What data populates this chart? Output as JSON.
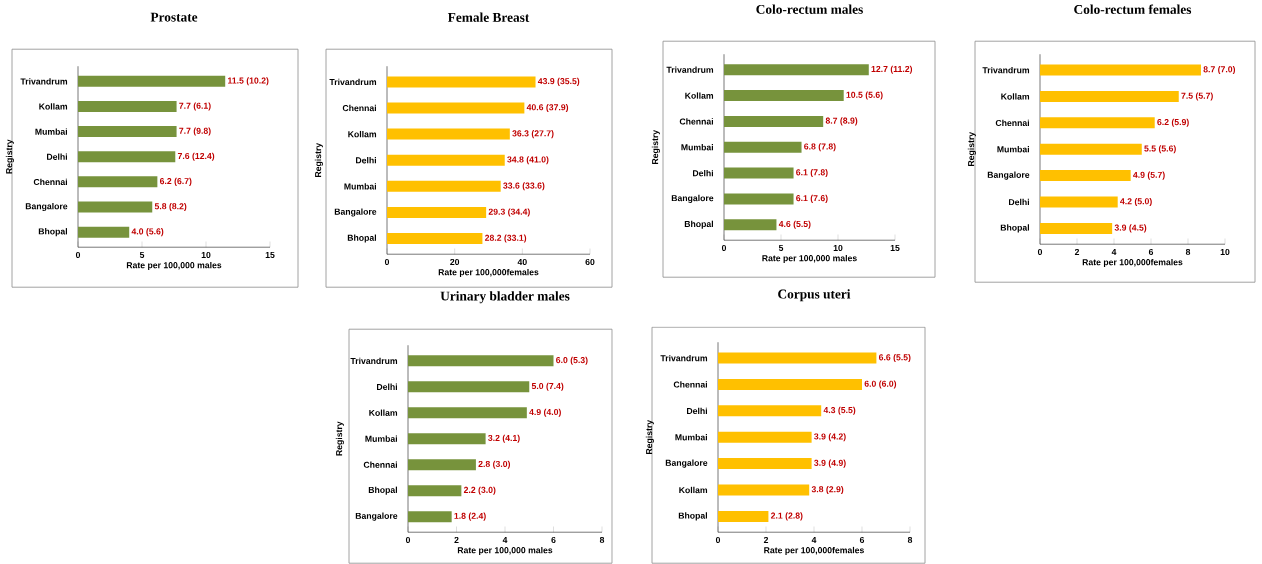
{
  "chart_data": [
    {
      "type": "bar",
      "orientation": "horizontal",
      "title": "Prostate",
      "xlabel": "Rate per 100,000 males",
      "ylabel": "Registry",
      "categories": [
        "Trivandrum",
        "Kollam",
        "Mumbai",
        "Delhi",
        "Chennai",
        "Bangalore",
        "Bhopal"
      ],
      "values": [
        11.5,
        7.7,
        7.7,
        7.6,
        6.2,
        5.8,
        4.0
      ],
      "value_labels": [
        "11.5 (10.2)",
        "7.7 (6.1)",
        "7.7 (9.8)",
        "7.6 (12.4)",
        "6.2 (6.7)",
        "5.8 (8.2)",
        "4.0 (5.6)"
      ],
      "color": "#77933c",
      "xlim": [
        0,
        15
      ],
      "xticks": [
        0,
        5,
        10,
        15
      ],
      "grid": false
    },
    {
      "type": "bar",
      "orientation": "horizontal",
      "title": "Female Breast",
      "xlabel": "Rate per 100,000females",
      "ylabel": "Registry",
      "categories": [
        "Trivandrum",
        "Chennai",
        "Kollam",
        "Delhi",
        "Mumbai",
        "Bangalore",
        "Bhopal"
      ],
      "values": [
        43.9,
        40.6,
        36.3,
        34.8,
        33.6,
        29.3,
        28.2
      ],
      "value_labels": [
        "43.9 (35.5)",
        "40.6 (37.9)",
        "36.3 (27.7)",
        "34.8 (41.0)",
        "33.6 (33.6)",
        "29.3 (34.4)",
        "28.2 (33.1)"
      ],
      "color": "#ffc000",
      "xlim": [
        0,
        60
      ],
      "xticks": [
        0,
        20,
        40,
        60
      ],
      "grid": false
    },
    {
      "type": "bar",
      "orientation": "horizontal",
      "title": "Colo-rectum males",
      "xlabel": "Rate per 100,000 males",
      "ylabel": "Registry",
      "categories": [
        "Trivandrum",
        "Kollam",
        "Chennai",
        "Mumbai",
        "Delhi",
        "Bangalore",
        "Bhopal"
      ],
      "values": [
        12.7,
        10.5,
        8.7,
        6.8,
        6.1,
        6.1,
        4.6
      ],
      "value_labels": [
        "12.7 (11.2)",
        "10.5 (5.6)",
        "8.7 (8.9)",
        "6.8 (7.8)",
        "6.1 (7.8)",
        "6.1 (7.6)",
        "4.6 (5.5)"
      ],
      "color": "#77933c",
      "xlim": [
        0,
        15
      ],
      "xticks": [
        0,
        5,
        10,
        15
      ],
      "grid": false
    },
    {
      "type": "bar",
      "orientation": "horizontal",
      "title": "Colo-rectum females",
      "xlabel": "Rate per 100,000females",
      "ylabel": "Registry",
      "categories": [
        "Trivandrum",
        "Kollam",
        "Chennai",
        "Mumbai",
        "Bangalore",
        "Delhi",
        "Bhopal"
      ],
      "values": [
        8.7,
        7.5,
        6.2,
        5.5,
        4.9,
        4.2,
        3.9
      ],
      "value_labels": [
        "8.7 (7.0)",
        "7.5 (5.7)",
        "6.2 (5.9)",
        "5.5 (5.6)",
        "4.9 (5.7)",
        "4.2 (5.0)",
        "3.9 (4.5)"
      ],
      "color": "#ffc000",
      "xlim": [
        0,
        10
      ],
      "xticks": [
        0,
        2,
        4,
        6,
        8,
        10
      ],
      "grid": false
    },
    {
      "type": "bar",
      "orientation": "horizontal",
      "title": "Urinary bladder males",
      "xlabel": "Rate per 100,000 males",
      "ylabel": "Registry",
      "categories": [
        "Trivandrum",
        "Delhi",
        "Kollam",
        "Mumbai",
        "Chennai",
        "Bhopal",
        "Bangalore"
      ],
      "values": [
        6.0,
        5.0,
        4.9,
        3.2,
        2.8,
        2.2,
        1.8
      ],
      "value_labels": [
        "6.0 (5.3)",
        "5.0 (7.4)",
        "4.9 (4.0)",
        "3.2 (4.1)",
        "2.8 (3.0)",
        "2.2 (3.0)",
        "1.8 (2.4)"
      ],
      "color": "#77933c",
      "xlim": [
        0,
        8
      ],
      "xticks": [
        0,
        2,
        4,
        6,
        8
      ],
      "grid": false
    },
    {
      "type": "bar",
      "orientation": "horizontal",
      "title": "Corpus uteri",
      "xlabel": "Rate per 100,000females",
      "ylabel": "Registry",
      "categories": [
        "Trivandrum",
        "Chennai",
        "Delhi",
        "Mumbai",
        "Bangalore",
        "Kollam",
        "Bhopal"
      ],
      "values": [
        6.6,
        6.0,
        4.3,
        3.9,
        3.9,
        3.8,
        2.1
      ],
      "value_labels": [
        "6.6 (5.5)",
        "6.0 (6.0)",
        "4.3 (5.5)",
        "3.9 (4.2)",
        "3.9 (4.9)",
        "3.8 (2.9)",
        "2.1 (2.8)"
      ],
      "color": "#ffc000",
      "xlim": [
        0,
        8
      ],
      "xticks": [
        0,
        2,
        4,
        6,
        8
      ],
      "grid": false
    }
  ]
}
